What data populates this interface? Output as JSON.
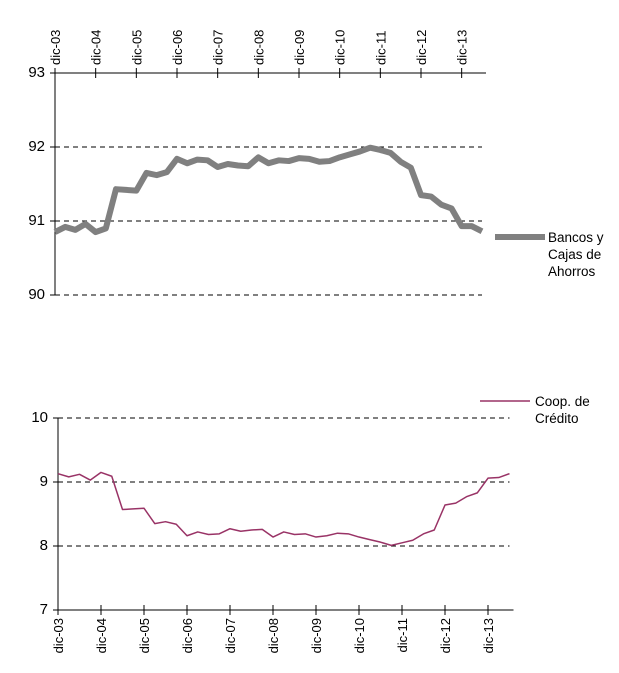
{
  "chart_data": [
    {
      "type": "line",
      "categories": [
        "dic-03",
        null,
        null,
        null,
        "dic-04",
        null,
        null,
        null,
        "dic-05",
        null,
        null,
        null,
        "dic-06",
        null,
        null,
        null,
        "dic-07",
        null,
        null,
        null,
        "dic-08",
        null,
        null,
        null,
        "dic-09",
        null,
        null,
        null,
        "dic-10",
        null,
        null,
        null,
        "dic-11",
        null,
        null,
        null,
        "dic-12",
        null,
        null,
        null,
        "dic-13",
        null,
        null
      ],
      "series": [
        {
          "name": "Bancos y Cajas de Ahorros",
          "color": "#808080",
          "values": [
            90.85,
            90.92,
            90.88,
            90.96,
            90.85,
            90.9,
            91.43,
            91.42,
            91.41,
            91.65,
            91.62,
            91.66,
            91.84,
            91.78,
            91.83,
            91.82,
            91.73,
            91.77,
            91.75,
            91.74,
            91.86,
            91.78,
            91.82,
            91.81,
            91.85,
            91.84,
            91.8,
            91.81,
            91.86,
            91.9,
            91.94,
            91.99,
            91.96,
            91.92,
            91.8,
            91.72,
            91.35,
            91.33,
            91.22,
            91.17,
            90.93,
            90.93,
            90.86
          ]
        }
      ],
      "ylim": [
        90,
        93
      ],
      "yticks": [
        90,
        91,
        92,
        93
      ],
      "grid": true,
      "x_axis_position": "top",
      "legend": "right"
    },
    {
      "type": "line",
      "categories": [
        "dic-03",
        null,
        null,
        null,
        "dic-04",
        null,
        null,
        null,
        "dic-05",
        null,
        null,
        null,
        "dic-06",
        null,
        null,
        null,
        "dic-07",
        null,
        null,
        null,
        "dic-08",
        null,
        null,
        null,
        "dic-09",
        null,
        null,
        null,
        "dic-10",
        null,
        null,
        null,
        "dic-11",
        null,
        null,
        null,
        "dic-12",
        null,
        null,
        null,
        "dic-13",
        null,
        null
      ],
      "series": [
        {
          "name": "Coop. de Crédito",
          "color": "#993366",
          "values": [
            9.13,
            9.08,
            9.12,
            9.03,
            9.15,
            9.09,
            8.57,
            8.58,
            8.59,
            8.35,
            8.38,
            8.34,
            8.16,
            8.22,
            8.18,
            8.19,
            8.27,
            8.23,
            8.25,
            8.26,
            8.14,
            8.22,
            8.18,
            8.19,
            8.14,
            8.16,
            8.2,
            8.19,
            8.14,
            8.1,
            8.06,
            8.01,
            8.05,
            8.09,
            8.19,
            8.25,
            8.64,
            8.67,
            8.77,
            8.83,
            9.06,
            9.07,
            9.13
          ]
        }
      ],
      "ylim": [
        7,
        10
      ],
      "yticks": [
        7,
        8,
        9,
        10
      ],
      "grid": true,
      "x_axis_position": "bottom",
      "legend": "top-right"
    }
  ]
}
